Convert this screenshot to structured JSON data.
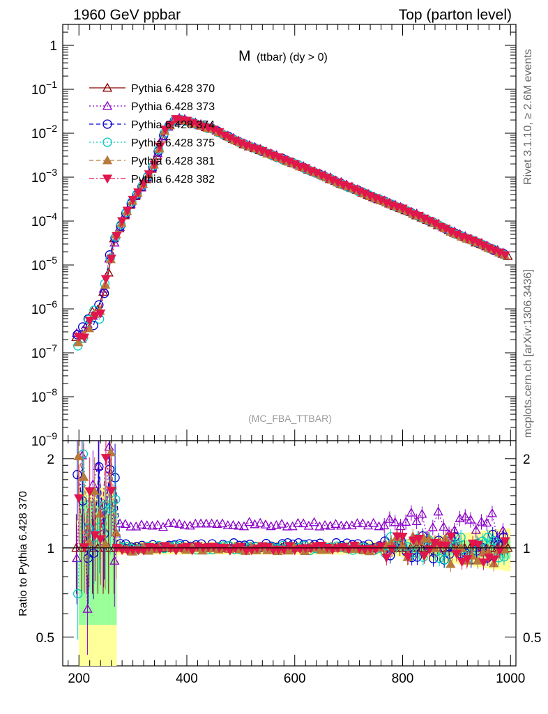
{
  "header": {
    "left": "1960 GeV ppbar",
    "right": "Top (parton level)"
  },
  "side_labels": {
    "rivet": "Rivet 3.1.10, ≥ 2.6M events",
    "mcplots": "mcplots.cern.ch [arXiv:1306.3436]"
  },
  "chart_data": {
    "type": "line",
    "title_main": "M",
    "title_sub": "(ttbar) (dy > 0)",
    "watermark": "(MC_FBA_TTBAR)",
    "xlabel": "",
    "ylabel": "",
    "ratio_ylabel": "Ratio to Pythia 6.428 370",
    "xlim": [
      170,
      1010
    ],
    "ylim": [
      1e-09,
      3
    ],
    "ylog": true,
    "ratio_ylim": [
      0.4,
      2.3
    ],
    "ratio_ylog": true,
    "x_ticks": [
      200,
      400,
      600,
      800,
      1000
    ],
    "x_tick_labels": [
      "200",
      "400",
      "600",
      "800",
      "1000"
    ],
    "y_ticks": [
      1,
      0.1,
      0.01,
      0.001,
      0.0001,
      1e-05,
      1e-06,
      1e-07,
      1e-08,
      1e-09
    ],
    "y_tick_labels": [
      {
        "base": "1",
        "exp": ""
      },
      {
        "base": "10",
        "exp": "−1"
      },
      {
        "base": "10",
        "exp": "−2"
      },
      {
        "base": "10",
        "exp": "−3"
      },
      {
        "base": "10",
        "exp": "−4"
      },
      {
        "base": "10",
        "exp": "−5"
      },
      {
        "base": "10",
        "exp": "−6"
      },
      {
        "base": "10",
        "exp": "−7"
      },
      {
        "base": "10",
        "exp": "−8"
      },
      {
        "base": "10",
        "exp": "−9"
      }
    ],
    "ratio_ticks": [
      0.5,
      1,
      2
    ],
    "ratio_tick_labels": [
      "0.5",
      "1",
      "2"
    ],
    "legend_position": "top-left",
    "grid": false,
    "reference": {
      "x": [
        200,
        220,
        240,
        260,
        280,
        300,
        320,
        340,
        360,
        380,
        400,
        450,
        500,
        550,
        600,
        650,
        700,
        750,
        800,
        850,
        900,
        950,
        1000
      ],
      "y": [
        2e-07,
        5e-07,
        1e-06,
        2e-05,
        0.0001,
        0.0003,
        0.0007,
        0.002,
        0.012,
        0.021,
        0.019,
        0.012,
        0.006,
        0.0035,
        0.002,
        0.0011,
        0.0006,
        0.00033,
        0.00019,
        0.0001,
        5e-05,
        2.8e-05,
        1.5e-05
      ]
    },
    "series": [
      {
        "name": "Pythia 6.428 370",
        "color": "#8b0000",
        "marker": "triangle-up-open",
        "dash": "solid",
        "ratio_level": 1.0
      },
      {
        "name": "Pythia 6.428 373",
        "color": "#8a00c8",
        "marker": "triangle-up-open",
        "dash": "dotted",
        "ratio_level": 1.2
      },
      {
        "name": "Pythia 6.428 374",
        "color": "#0000cc",
        "marker": "circle-open",
        "dash": "dashed",
        "ratio_level": 1.02
      },
      {
        "name": "Pythia 6.428 375",
        "color": "#00c8c0",
        "marker": "circle-open",
        "dash": "dotted",
        "ratio_level": 1.0
      },
      {
        "name": "Pythia 6.428 381",
        "color": "#b87a3c",
        "marker": "triangle-up-filled",
        "dash": "dashed",
        "ratio_level": 0.99
      },
      {
        "name": "Pythia 6.428 382",
        "color": "#e0164c",
        "marker": "triangle-down-filled",
        "dash": "dashdot",
        "ratio_level": 1.0
      }
    ]
  }
}
